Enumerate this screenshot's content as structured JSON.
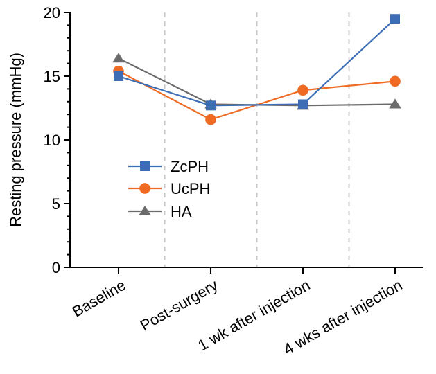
{
  "chart_data": {
    "type": "line",
    "title": "",
    "xlabel": "",
    "ylabel": "Resting pressure (mmHg)",
    "ylim": [
      0,
      20
    ],
    "yticks": [
      0,
      5,
      10,
      15,
      20
    ],
    "categories": [
      "Baseline",
      "Post-surgery",
      "1 wk after injection",
      "4 wks after injection"
    ],
    "grid": false,
    "separators": "dashed vertical lines between categories",
    "legend_position": "center-left",
    "series": [
      {
        "name": "ZcPH",
        "color": "#3d6eb5",
        "marker": "square",
        "values": [
          15.0,
          12.7,
          12.8,
          19.5
        ]
      },
      {
        "name": "UcPH",
        "color": "#ef6a22",
        "marker": "circle",
        "values": [
          15.4,
          11.6,
          13.9,
          14.6
        ]
      },
      {
        "name": "HA",
        "color": "#6b6b6b",
        "marker": "triangle",
        "values": [
          16.4,
          12.8,
          12.7,
          12.8
        ]
      }
    ]
  }
}
